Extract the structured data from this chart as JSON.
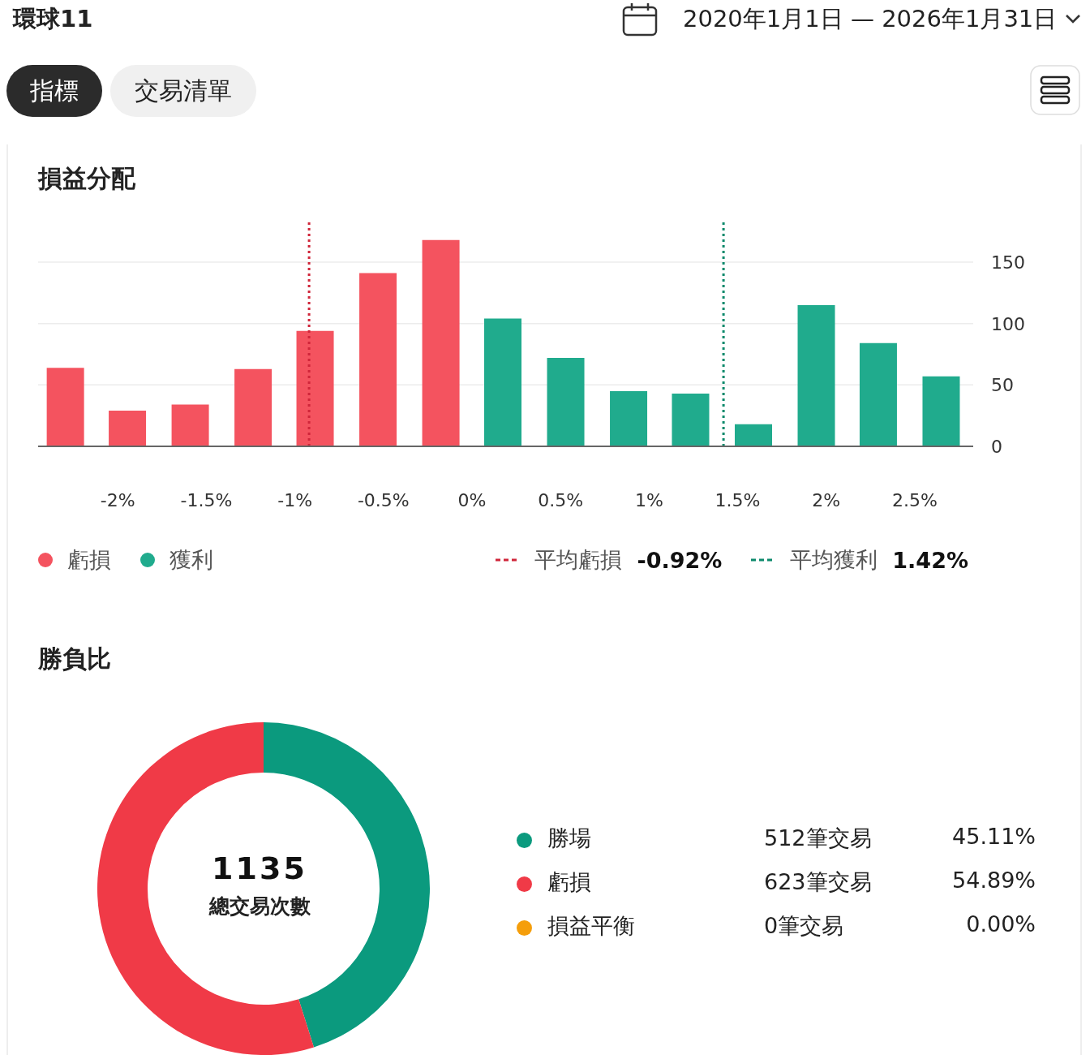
{
  "chart_data": [
    {
      "type": "histogram",
      "title": "損益分配",
      "bins": [
        -2.47,
        -2.12,
        -1.77,
        -1.41,
        -1.06,
        -0.71,
        -0.35,
        0,
        0.35,
        0.71,
        1.06,
        1.41,
        1.77,
        2.12,
        2.47,
        2.83
      ],
      "series": [
        {
          "name": "虧損",
          "color": "#f4535f",
          "values": [
            64,
            29,
            34,
            63,
            94,
            141,
            168,
            null,
            null,
            null,
            null,
            null,
            null,
            null,
            null
          ]
        },
        {
          "name": "獲利",
          "color": "#20ab8d",
          "values": [
            null,
            null,
            null,
            null,
            null,
            null,
            null,
            104,
            72,
            45,
            43,
            18,
            115,
            84,
            57
          ]
        }
      ],
      "xlim": [
        -2.45,
        2.83
      ],
      "xticks": [
        {
          "value": -2,
          "label": "-2%"
        },
        {
          "value": -1.5,
          "label": "-1.5%"
        },
        {
          "value": -1,
          "label": "-1%"
        },
        {
          "value": -0.5,
          "label": "-0.5%"
        },
        {
          "value": 0,
          "label": "0%"
        },
        {
          "value": 0.5,
          "label": "0.5%"
        },
        {
          "value": 1,
          "label": "1%"
        },
        {
          "value": 1.5,
          "label": "1.5%"
        },
        {
          "value": 2,
          "label": "2%"
        },
        {
          "value": 2.5,
          "label": "2.5%"
        }
      ],
      "ylim": [
        0,
        185
      ],
      "yticks": [
        0,
        50,
        100,
        150
      ],
      "grid": "y",
      "legend": "bottom",
      "ref_lines": [
        {
          "axis": "x",
          "value": -0.92,
          "label": "平均虧損 -0.92%",
          "color": "#d0263a",
          "line_style": "dotted"
        },
        {
          "axis": "x",
          "value": 1.42,
          "label": "平均獲利 1.42%",
          "color": "#0d8a6c",
          "line_style": "dotted"
        }
      ],
      "annotations": [
        "環球11",
        "2020年1月1日 — 2026年1月31日",
        "指標",
        "交易清單"
      ]
    },
    {
      "type": "donut",
      "title": "勝負比",
      "categories": [
        "勝場",
        "虧損",
        "損益平衡"
      ],
      "values": [
        512,
        623,
        0
      ],
      "colors": [
        "#0b9a7e",
        "#f03a47",
        "#f59e0b"
      ],
      "value_labels": [
        "512筆交易",
        "623筆交易",
        "0筆交易"
      ],
      "legend": "right",
      "annotations": [
        "1135",
        "總交易次數",
        "45.11%",
        "54.89%",
        "0.00%"
      ]
    }
  ]
}
